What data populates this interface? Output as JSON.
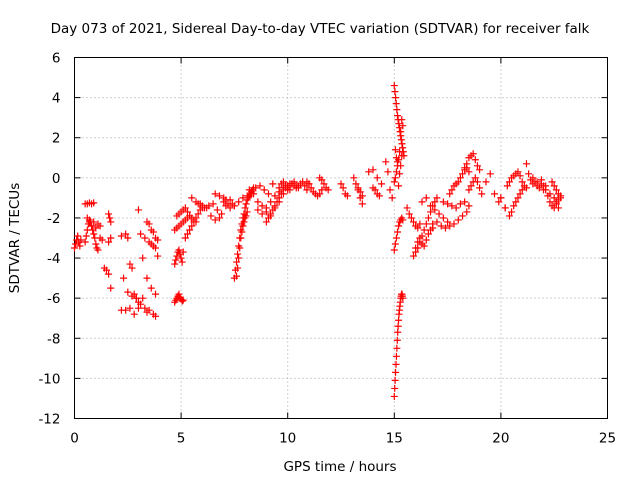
{
  "chart_data": {
    "type": "scatter",
    "title": "Day 073 of 2021, Sidereal Day-to-day VTEC variation (SDTVAR) for receiver falk",
    "xlabel": "GPS time / hours",
    "ylabel": "SDTVAR / TECUs",
    "xlim": [
      0,
      25
    ],
    "ylim": [
      -12,
      6
    ],
    "xticks": [
      0,
      5,
      10,
      15,
      20,
      25
    ],
    "yticks": [
      -12,
      -10,
      -8,
      -6,
      -4,
      -2,
      0,
      2,
      4,
      6
    ],
    "xtick_labels": [
      "0",
      "5",
      "10",
      "15",
      "20",
      "25"
    ],
    "ytick_labels": [
      "-12",
      "-10",
      "-8",
      "-6",
      "-4",
      "-2",
      "0",
      "2",
      "4",
      "6"
    ],
    "grid": true,
    "marker": "+",
    "color": "#ff0000",
    "segments": [
      {
        "x": [
          0.0,
          0.05,
          0.1,
          0.15,
          0.2,
          0.25,
          0.3
        ],
        "y": [
          -3.5,
          -3.3,
          -3.1,
          -2.9,
          -3.2,
          -3.4,
          -3.1
        ]
      },
      {
        "x": [
          0.5,
          0.6,
          0.7,
          0.8,
          0.9
        ],
        "y": [
          -1.3,
          -1.3,
          -1.25,
          -1.3,
          -1.25
        ]
      },
      {
        "x": [
          0.5,
          0.55,
          0.6,
          0.65,
          0.7,
          0.75,
          0.8,
          0.85,
          0.9,
          0.95,
          1.0,
          1.05,
          1.1
        ],
        "y": [
          -3.2,
          -2.9,
          -2.6,
          -2.3,
          -2.1,
          -2.2,
          -2.4,
          -2.6,
          -2.8,
          -3.0,
          -3.3,
          -3.5,
          -3.6
        ]
      },
      {
        "x": [
          0.6,
          0.7,
          0.8,
          0.9,
          1.0,
          1.1,
          1.2
        ],
        "y": [
          -2.0,
          -2.2,
          -2.4,
          -2.2,
          -2.5,
          -2.3,
          -2.4
        ]
      },
      {
        "x": [
          1.2,
          1.3,
          1.4,
          1.5,
          1.6,
          1.7
        ],
        "y": [
          -3.0,
          -3.1,
          -4.5,
          -4.6,
          -4.8,
          -5.5
        ]
      },
      {
        "x": [
          1.6,
          1.65,
          1.7,
          1.6,
          1.7
        ],
        "y": [
          -1.8,
          -2.0,
          -2.2,
          -3.2,
          -3.0
        ]
      },
      {
        "x": [
          2.2,
          2.4,
          2.5,
          2.6,
          2.7,
          2.8,
          2.9,
          3.0
        ],
        "y": [
          -2.9,
          -2.8,
          -3.0,
          -4.3,
          -4.5,
          -5.8,
          -6.0,
          -6.5
        ]
      },
      {
        "x": [
          2.3,
          2.5,
          2.7,
          2.9,
          3.1,
          3.3,
          3.5,
          3.7,
          3.8
        ],
        "y": [
          -5.0,
          -5.7,
          -5.9,
          -6.0,
          -6.3,
          -6.5,
          -6.6,
          -6.8,
          -6.9
        ]
      },
      {
        "x": [
          2.2,
          2.4,
          2.6,
          2.8,
          3.0,
          3.2,
          3.4
        ],
        "y": [
          -6.6,
          -6.6,
          -6.5,
          -6.8,
          -6.2,
          -6.0,
          -6.7
        ]
      },
      {
        "x": [
          3.0,
          3.1,
          3.3,
          3.5,
          3.6,
          3.7,
          3.8
        ],
        "y": [
          -1.6,
          -2.8,
          -3.0,
          -3.2,
          -3.3,
          -3.4,
          -3.5
        ]
      },
      {
        "x": [
          3.2,
          3.4,
          3.6,
          3.8,
          3.9
        ],
        "y": [
          -4.0,
          -5.0,
          -5.5,
          -5.8,
          -3.9
        ]
      },
      {
        "x": [
          3.4,
          3.5,
          3.6,
          3.7,
          3.8,
          3.9
        ],
        "y": [
          -2.2,
          -2.3,
          -2.6,
          -2.7,
          -3.0,
          -3.1
        ]
      },
      {
        "x": [
          4.7,
          4.75,
          4.8,
          4.85,
          4.9,
          4.95,
          5.0,
          5.05,
          5.1
        ],
        "y": [
          -6.2,
          -6.1,
          -6.0,
          -5.9,
          -5.8,
          -5.95,
          -6.05,
          -6.15,
          -6.1
        ]
      },
      {
        "x": [
          4.7,
          4.75,
          4.8,
          4.85,
          4.9,
          4.95,
          5.0,
          5.05,
          5.1
        ],
        "y": [
          -4.3,
          -4.1,
          -3.9,
          -3.7,
          -3.6,
          -3.8,
          -4.0,
          -4.2,
          -3.7
        ]
      },
      {
        "x": [
          4.7,
          4.8,
          4.9,
          5.0,
          5.1,
          5.2,
          5.3,
          5.4
        ],
        "y": [
          -2.6,
          -2.5,
          -2.4,
          -2.3,
          -2.2,
          -2.1,
          -2.0,
          -1.9
        ]
      },
      {
        "x": [
          4.8,
          4.9,
          5.0,
          5.1,
          5.2,
          5.3,
          5.4,
          5.5,
          5.6,
          5.7,
          5.8
        ],
        "y": [
          -1.9,
          -1.8,
          -1.7,
          -1.6,
          -1.5,
          -1.7,
          -1.9,
          -2.0,
          -2.1,
          -2.2,
          -1.3
        ]
      },
      {
        "x": [
          5.2,
          5.3,
          5.4,
          5.5,
          5.6,
          5.7,
          5.8,
          5.9,
          6.0
        ],
        "y": [
          -3.0,
          -2.8,
          -2.6,
          -2.4,
          -2.2,
          -2.0,
          -1.8,
          -1.6,
          -1.5
        ]
      },
      {
        "x": [
          5.5,
          5.7,
          5.9,
          6.1,
          6.3,
          6.5,
          6.7,
          6.9,
          7.1,
          7.3
        ],
        "y": [
          -1.0,
          -1.2,
          -1.3,
          -1.5,
          -1.4,
          -1.3,
          -1.6,
          -1.8,
          -1.4,
          -1.1
        ]
      },
      {
        "x": [
          6.0,
          6.2,
          6.4,
          6.6,
          6.8,
          7.0
        ],
        "y": [
          -1.4,
          -1.5,
          -1.9,
          -2.1,
          -2.0,
          -1.2
        ]
      },
      {
        "x": [
          6.6,
          6.8,
          7.0,
          7.1,
          7.2,
          7.3,
          7.4
        ],
        "y": [
          -0.8,
          -0.9,
          -1.0,
          -1.1,
          -1.3,
          -1.5,
          -1.3
        ]
      },
      {
        "x": [
          7.5,
          7.55,
          7.6,
          7.65,
          7.7,
          7.75,
          7.8,
          7.85,
          7.9,
          7.95,
          8.0,
          8.05,
          8.1,
          8.15,
          8.2,
          8.25,
          8.3,
          8.35,
          8.4
        ],
        "y": [
          -5.0,
          -4.6,
          -4.2,
          -3.8,
          -3.4,
          -3.0,
          -2.6,
          -2.3,
          -2.0,
          -1.8,
          -1.5,
          -1.3,
          -1.1,
          -1.0,
          -0.9,
          -0.8,
          -0.7,
          -0.6,
          -0.5
        ]
      },
      {
        "x": [
          7.6,
          7.65,
          7.7,
          7.75,
          7.8,
          7.85,
          7.9,
          7.95,
          8.0,
          8.05,
          8.1
        ],
        "y": [
          -4.9,
          -4.5,
          -4.0,
          -3.5,
          -3.0,
          -2.7,
          -2.4,
          -2.2,
          -2.0,
          -1.9,
          -1.7
        ]
      },
      {
        "x": [
          7.5,
          7.7,
          7.9,
          8.1,
          8.3,
          8.5,
          8.7,
          8.9,
          9.1,
          9.3
        ],
        "y": [
          -1.4,
          -1.2,
          -1.0,
          -0.9,
          -0.8,
          -0.5,
          -0.4,
          -0.6,
          -0.8,
          -0.3
        ]
      },
      {
        "x": [
          8.2,
          8.4,
          8.6,
          8.8,
          9.0,
          9.2,
          9.4,
          9.6,
          9.8,
          10.0
        ],
        "y": [
          -0.6,
          -0.8,
          -1.2,
          -1.4,
          -1.5,
          -1.2,
          -0.9,
          -0.7,
          -0.5,
          -0.4
        ]
      },
      {
        "x": [
          8.6,
          8.8,
          9.0,
          9.2,
          9.4,
          9.6,
          9.8,
          10.0
        ],
        "y": [
          -1.6,
          -1.8,
          -1.7,
          -1.9,
          -1.5,
          -1.2,
          -0.8,
          -0.6
        ]
      },
      {
        "x": [
          9.0,
          9.1,
          9.2,
          9.3,
          9.4,
          9.5,
          9.6,
          9.7,
          9.8,
          9.9,
          10.0,
          10.1,
          10.2,
          10.3,
          10.4,
          10.5
        ],
        "y": [
          -2.2,
          -2.0,
          -1.8,
          -1.6,
          -1.4,
          -1.2,
          -1.0,
          -0.8,
          -0.6,
          -0.5,
          -0.4,
          -0.3,
          -0.3,
          -0.4,
          -0.5,
          -0.4
        ]
      },
      {
        "x": [
          9.6,
          9.7,
          9.8,
          9.9,
          10.0,
          10.1,
          10.2,
          10.3,
          10.4,
          10.5,
          10.6,
          10.7,
          10.8,
          10.9,
          11.0
        ],
        "y": [
          -0.5,
          -0.3,
          -0.2,
          -0.4,
          -0.5,
          -0.6,
          -0.3,
          -0.2,
          -0.4,
          -0.5,
          -0.3,
          -0.2,
          -0.4,
          -0.6,
          -0.3
        ]
      },
      {
        "x": [
          10.9,
          11.0,
          11.1,
          11.2,
          11.3,
          11.4,
          11.5,
          11.6
        ],
        "y": [
          -0.2,
          -0.3,
          -0.5,
          -0.7,
          -0.8,
          -0.9,
          -0.8,
          -0.6
        ]
      },
      {
        "x": [
          11.5,
          11.6,
          11.7,
          11.8,
          11.9
        ],
        "y": [
          0.0,
          -0.1,
          -0.3,
          -0.5,
          -0.6
        ]
      },
      {
        "x": [
          12.5,
          12.6,
          12.7,
          12.8
        ],
        "y": [
          -0.3,
          -0.5,
          -0.8,
          -0.9
        ]
      },
      {
        "x": [
          13.1,
          13.2,
          13.3,
          13.4,
          13.5
        ],
        "y": [
          0.0,
          -0.3,
          -0.6,
          -1.0,
          -1.3
        ]
      },
      {
        "x": [
          13.3,
          13.4,
          13.5
        ],
        "y": [
          -0.5,
          -0.7,
          -0.9
        ]
      },
      {
        "x": [
          13.8,
          14.0,
          14.2,
          14.4
        ],
        "y": [
          0.3,
          0.4,
          0.0,
          -0.3
        ]
      },
      {
        "x": [
          14.0,
          14.1,
          14.2,
          14.3
        ],
        "y": [
          -0.5,
          -0.6,
          -0.8,
          -0.9
        ]
      },
      {
        "x": [
          14.6,
          14.7,
          14.8,
          14.9
        ],
        "y": [
          0.8,
          0.3,
          -0.6,
          -1.0
        ]
      },
      {
        "x": [
          15.0,
          15.03,
          15.06,
          15.09,
          15.12,
          15.15,
          15.18,
          15.21,
          15.24,
          15.27,
          15.3,
          15.33,
          15.36,
          15.39,
          15.42,
          15.45
        ],
        "y": [
          4.6,
          4.3,
          4.0,
          3.7,
          3.4,
          3.1,
          2.9,
          2.7,
          2.5,
          2.3,
          2.1,
          1.9,
          1.7,
          1.5,
          1.3,
          1.1
        ]
      },
      {
        "x": [
          15.05,
          15.1,
          15.15,
          15.2,
          15.25,
          15.3,
          15.35,
          15.4
        ],
        "y": [
          1.4,
          1.0,
          0.6,
          0.9,
          1.3,
          2.3,
          2.9,
          2.6
        ]
      },
      {
        "x": [
          15.0,
          15.05,
          15.1,
          15.15,
          15.2,
          15.25,
          15.3,
          15.35
        ],
        "y": [
          -0.2,
          0.0,
          0.3,
          0.8,
          -0.4,
          0.2,
          0.6,
          1.1
        ]
      },
      {
        "x": [
          15.0,
          15.02,
          15.04,
          15.06,
          15.08,
          15.1,
          15.12,
          15.14,
          15.16,
          15.18,
          15.2,
          15.22,
          15.24,
          15.26,
          15.28,
          15.3,
          15.32,
          15.34,
          15.36,
          15.38,
          15.4
        ],
        "y": [
          -10.9,
          -10.5,
          -10.1,
          -9.7,
          -9.3,
          -8.9,
          -8.5,
          -8.1,
          -7.7,
          -7.4,
          -7.1,
          -6.8,
          -6.6,
          -6.4,
          -6.2,
          -6.0,
          -5.9,
          -5.8,
          -5.8,
          -5.9,
          -6.0
        ]
      },
      {
        "x": [
          15.0,
          15.05,
          15.1,
          15.15,
          15.2,
          15.25,
          15.3,
          15.35,
          15.4
        ],
        "y": [
          -3.6,
          -3.3,
          -3.0,
          -2.7,
          -2.4,
          -2.2,
          -2.1,
          -2.0,
          -2.1
        ]
      },
      {
        "x": [
          15.6,
          15.7,
          15.8,
          15.9,
          16.0,
          16.1,
          16.2
        ],
        "y": [
          -1.5,
          -1.8,
          -2.0,
          -2.2,
          -2.4,
          -2.5,
          -2.3
        ]
      },
      {
        "x": [
          15.9,
          16.0,
          16.1,
          16.2,
          16.3,
          16.4,
          16.5,
          16.6,
          16.7,
          16.8,
          16.9,
          17.0
        ],
        "y": [
          -3.9,
          -3.7,
          -3.5,
          -3.2,
          -2.9,
          -2.6,
          -2.3,
          -2.0,
          -1.7,
          -1.4,
          -1.2,
          -1.0
        ]
      },
      {
        "x": [
          16.0,
          16.1,
          16.2,
          16.3,
          16.4,
          16.5,
          16.6,
          16.7,
          16.8
        ],
        "y": [
          -3.5,
          -3.2,
          -3.0,
          -3.3,
          -3.4,
          -3.1,
          -2.8,
          -2.6,
          -2.5
        ]
      },
      {
        "x": [
          16.3,
          16.5,
          16.7,
          16.9,
          17.1,
          17.3,
          17.5
        ],
        "y": [
          -1.2,
          -1.0,
          -1.4,
          -1.6,
          -1.8,
          -2.0,
          -2.2
        ]
      },
      {
        "x": [
          16.8,
          17.0,
          17.2,
          17.4,
          17.6,
          17.8,
          18.0,
          18.2,
          18.4
        ],
        "y": [
          -2.3,
          -2.2,
          -2.4,
          -2.5,
          -2.4,
          -2.3,
          -2.1,
          -1.9,
          -1.7
        ]
      },
      {
        "x": [
          17.3,
          17.5,
          17.7,
          17.9,
          18.1,
          18.3,
          18.5
        ],
        "y": [
          -1.2,
          -1.3,
          -1.4,
          -1.5,
          -1.3,
          -1.2,
          -1.4
        ]
      },
      {
        "x": [
          17.6,
          17.7,
          17.8,
          17.9,
          18.0,
          18.1,
          18.2,
          18.3,
          18.4,
          18.5
        ],
        "y": [
          -0.8,
          -0.6,
          -0.4,
          -0.3,
          -0.2,
          0.0,
          0.2,
          0.4,
          0.5,
          0.3
        ]
      },
      {
        "x": [
          18.3,
          18.4,
          18.5,
          18.6,
          18.7,
          18.8,
          18.9,
          19.0
        ],
        "y": [
          0.5,
          0.7,
          1.0,
          1.1,
          1.2,
          0.9,
          0.6,
          0.4
        ]
      },
      {
        "x": [
          18.5,
          18.6,
          18.7,
          18.8,
          18.9,
          19.0,
          19.1
        ],
        "y": [
          -0.6,
          -0.4,
          -0.2,
          0.0,
          -0.2,
          -0.5,
          -0.8
        ]
      },
      {
        "x": [
          19.3,
          19.5,
          19.7,
          19.9,
          20.0,
          20.2
        ],
        "y": [
          -0.2,
          0.2,
          -0.8,
          -1.2,
          -1.0,
          -1.5
        ]
      },
      {
        "x": [
          20.0,
          20.2,
          20.4,
          20.5,
          20.6,
          20.7,
          20.8,
          20.9,
          21.0
        ],
        "y": [
          -1.0,
          -1.5,
          -1.9,
          -1.7,
          -1.4,
          -1.2,
          -1.0,
          -0.8,
          -0.6
        ]
      },
      {
        "x": [
          20.3,
          20.4,
          20.5,
          20.6,
          20.7,
          20.8,
          20.9,
          21.0,
          21.1,
          21.2
        ],
        "y": [
          -0.4,
          -0.2,
          0.0,
          0.1,
          0.2,
          0.3,
          0.1,
          -0.2,
          -0.4,
          -0.5
        ]
      },
      {
        "x": [
          21.2,
          21.3,
          21.4,
          21.5,
          21.6,
          21.7,
          21.8,
          21.9,
          22.0
        ],
        "y": [
          0.7,
          0.2,
          -0.1,
          -0.3,
          -0.2,
          -0.4,
          -0.5,
          -0.3,
          -0.6
        ]
      },
      {
        "x": [
          21.5,
          21.7,
          21.9,
          22.1,
          22.3,
          22.5,
          22.6,
          22.7
        ],
        "y": [
          0.0,
          -0.2,
          -0.1,
          -0.4,
          -0.8,
          -1.0,
          -1.2,
          -1.5
        ]
      },
      {
        "x": [
          22.0,
          22.1,
          22.2,
          22.3,
          22.4,
          22.5,
          22.6,
          22.7,
          22.8
        ],
        "y": [
          -0.4,
          -0.6,
          -0.9,
          -1.2,
          -1.4,
          -1.5,
          -1.3,
          -1.1,
          -0.9
        ]
      },
      {
        "x": [
          22.4,
          22.5,
          22.6,
          22.7,
          22.8
        ],
        "y": [
          -0.2,
          -0.4,
          -0.6,
          -0.8,
          -1.0
        ]
      }
    ]
  }
}
